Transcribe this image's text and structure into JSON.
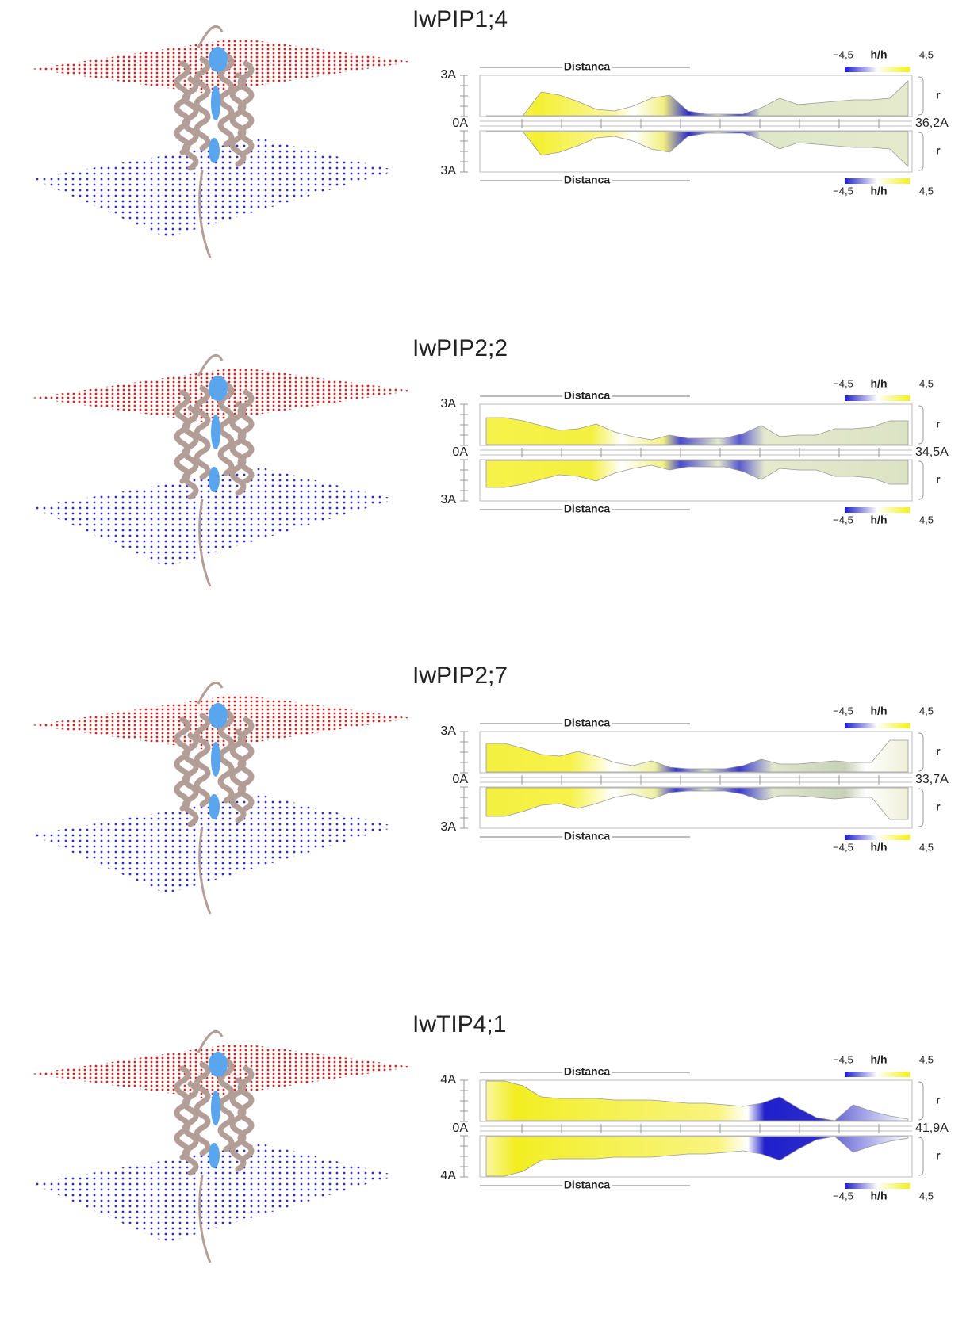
{
  "panels": [
    {
      "title": "IwPIP1;4",
      "distance_label": "Distanca",
      "radius_top": "3A",
      "zero": "0A",
      "radius_bottom": "3A",
      "length": "36,2A",
      "radius_axis": "r",
      "scale_min": "−4,5",
      "scale_name": "h/h",
      "scale_max": "4,5"
    },
    {
      "title": "IwPIP2;2",
      "distance_label": "Distanca",
      "radius_top": "3A",
      "zero": "0A",
      "radius_bottom": "3A",
      "length": "34,5A",
      "radius_axis": "r",
      "scale_min": "−4,5",
      "scale_name": "h/h",
      "scale_max": "4,5"
    },
    {
      "title": "IwPIP2;7",
      "distance_label": "Distanca",
      "radius_top": "3A",
      "zero": "0A",
      "radius_bottom": "3A",
      "length": "33,7A",
      "radius_axis": "r",
      "scale_min": "−4,5",
      "scale_name": "h/h",
      "scale_max": "4,5"
    },
    {
      "title": "IwTIP4;1",
      "distance_label": "Distanca",
      "radius_top": "4A",
      "zero": "0A",
      "radius_bottom": "4A",
      "length": "41,9A",
      "radius_axis": "r",
      "scale_min": "−4,5",
      "scale_name": "h/h",
      "scale_max": "4,5"
    }
  ]
}
